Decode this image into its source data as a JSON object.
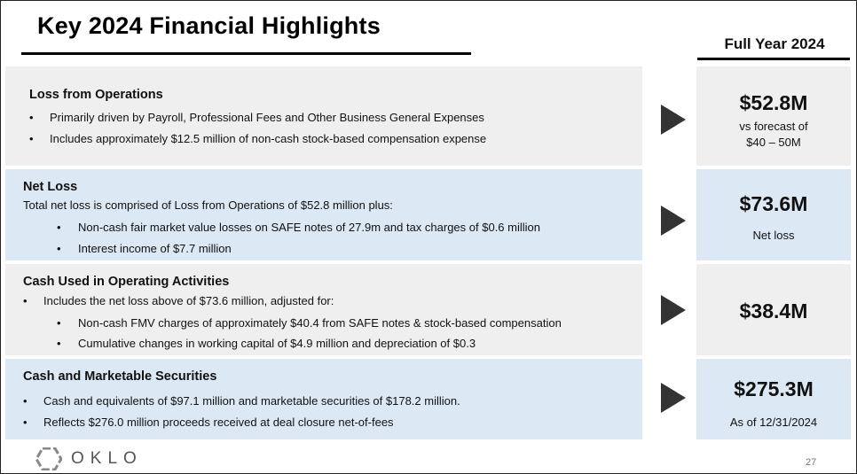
{
  "title": "Key 2024 Financial Highlights",
  "column_header": "Full Year 2024",
  "sections": [
    {
      "heading": "Loss from Operations",
      "bullets": [
        "Primarily driven by Payroll, Professional Fees and Other Business General Expenses",
        "Includes approximately $12.5 million of non-cash stock-based compensation expense"
      ],
      "value": "$52.8M",
      "note_line1": "vs forecast of",
      "note_line2": "$40 – 50M"
    },
    {
      "heading": "Net Loss",
      "intro": "Total net loss is comprised of Loss from Operations  of $52.8 million plus:",
      "bullets": [
        "Non-cash fair market value losses on SAFE notes of 27.9m and tax charges of $0.6 million",
        "Interest income of $7.7 million"
      ],
      "value": "$73.6M",
      "note": "Net loss"
    },
    {
      "heading": "Cash Used in Operating Activities",
      "bullet": "Includes the net loss above of $73.6 million, adjusted for:",
      "sub_bullets": [
        "Non-cash FMV charges of approximately $40.4 from SAFE notes & stock-based compensation",
        "Cumulative changes in working capital of $4.9 million and depreciation of $0.3"
      ],
      "value": "$38.4M"
    },
    {
      "heading": "Cash and Marketable Securities",
      "bullets": [
        "Cash and equivalents of $97.1 million and marketable securities of $178.2 million.",
        "Reflects $276.0 million proceeds received at deal closure net-of-fees"
      ],
      "value": "$275.3M",
      "note": "As of 12/31/2024"
    }
  ],
  "bullet_char": "•",
  "logo_text": "OKLO",
  "page_number": "27",
  "colors": {
    "gray_panel": "#efefef",
    "blue_panel": "#dce8f4",
    "arrow": "#333333"
  }
}
